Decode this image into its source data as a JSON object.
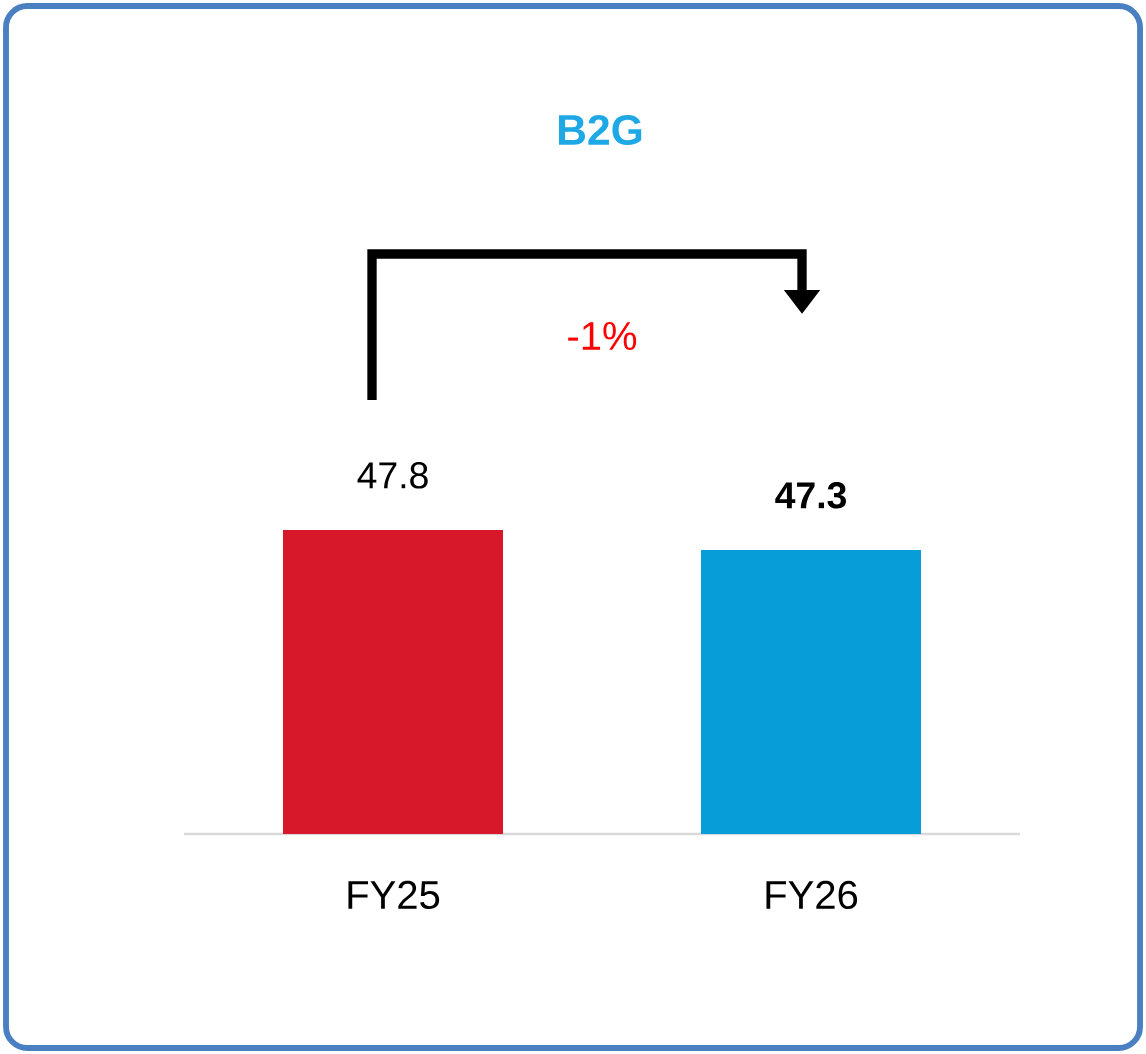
{
  "chart_data": {
    "type": "bar",
    "title": "B2G",
    "categories": [
      "FY25",
      "FY26"
    ],
    "values": [
      47.8,
      47.3
    ],
    "colors": [
      "#d7172a",
      "#079dd9"
    ],
    "value_labels": [
      "47.8",
      "**47.3**"
    ],
    "ylim": [
      40.2,
      47.8
    ],
    "annotations": [
      "-1%"
    ]
  }
}
